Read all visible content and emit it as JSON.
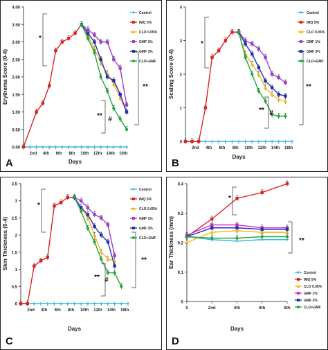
{
  "chart_data": [
    {
      "panel_label": "A",
      "type": "line",
      "ylabel": "Erythema Score (0-4)",
      "xlabel": "Days",
      "ylim": [
        0,
        4.0
      ],
      "yticks": [
        "0.00",
        "0.50",
        "1.00",
        "1.50",
        "2.00",
        "2.50",
        "3.00",
        "3.50",
        "4.00"
      ],
      "x_tick_labels": [
        "2nd",
        "4th",
        "6th",
        "8th",
        "10th",
        "12th",
        "14th",
        "16th"
      ],
      "x_tick_positions": [
        1.5,
        3.5,
        5.5,
        7.5,
        9.5,
        11.5,
        13.5,
        15.5
      ],
      "x": [
        0,
        1,
        2,
        3,
        4,
        5,
        6,
        7,
        8,
        9,
        10,
        11,
        12,
        13,
        14,
        15,
        16
      ],
      "series": [
        {
          "name": "Control",
          "color": "#3ab7ea",
          "marker": "plus",
          "values": [
            0,
            0,
            0,
            0,
            0,
            0,
            0,
            0,
            0,
            0,
            0,
            0,
            0,
            0,
            0,
            0,
            0
          ]
        },
        {
          "name": "IMQ 5%",
          "color": "#e0201e",
          "marker": "square",
          "values": [
            0,
            null,
            1.0,
            1.25,
            1.75,
            2.75,
            3.0,
            3.1,
            3.25,
            3.5,
            null,
            null,
            null,
            null,
            null,
            null,
            null
          ]
        },
        {
          "name": "CLO 0.05%",
          "color": "#f5b81c",
          "marker": "triangle",
          "values": [
            null,
            null,
            null,
            null,
            null,
            null,
            null,
            null,
            null,
            3.5,
            3.2,
            2.8,
            2.4,
            2.1,
            1.8,
            1.4,
            1.0
          ]
        },
        {
          "name": "GMF 1%",
          "color": "#a13bd6",
          "marker": "square",
          "values": [
            null,
            null,
            null,
            null,
            null,
            null,
            null,
            null,
            null,
            3.5,
            3.35,
            3.2,
            3.0,
            3.0,
            2.5,
            2.25,
            1.2
          ]
        },
        {
          "name": "GMF 3%",
          "color": "#1f2fb8",
          "marker": "square",
          "values": [
            null,
            null,
            null,
            null,
            null,
            null,
            null,
            null,
            null,
            3.5,
            3.25,
            3.0,
            2.5,
            2.0,
            1.9,
            1.5,
            1.0
          ]
        },
        {
          "name": "CLO+GMF",
          "color": "#1faa3a",
          "marker": "circle",
          "values": [
            null,
            null,
            null,
            null,
            null,
            null,
            null,
            null,
            null,
            3.5,
            3.1,
            2.7,
            2.0,
            1.6,
            1.1,
            0.8,
            0.5
          ]
        }
      ],
      "annotations": [
        "*",
        "**",
        "**",
        "#"
      ],
      "legend_position": "top-right"
    },
    {
      "panel_label": "B",
      "type": "line",
      "ylabel": "Scaling Score (0-4)",
      "xlabel": "Days",
      "ylim": [
        0,
        4
      ],
      "yticks": [
        "0",
        "1",
        "2",
        "3",
        "4"
      ],
      "x_tick_labels": [
        "2nd",
        "4th",
        "6th",
        "8th",
        "10th",
        "12th",
        "14th",
        "16th"
      ],
      "x_tick_positions": [
        1.5,
        3.5,
        5.5,
        7.5,
        9.5,
        11.5,
        13.5,
        15.5
      ],
      "x": [
        0,
        1,
        2,
        3,
        4,
        5,
        6,
        7,
        8,
        9,
        10,
        11,
        12,
        13,
        14,
        15,
        16
      ],
      "series": [
        {
          "name": "Control",
          "color": "#3ab7ea",
          "marker": "plus",
          "values": [
            0,
            0,
            0,
            0,
            0,
            0,
            0,
            0,
            0,
            0,
            0,
            0,
            0,
            0,
            0,
            0,
            0
          ]
        },
        {
          "name": "IMQ 5%",
          "color": "#e0201e",
          "marker": "square",
          "values": [
            0,
            0,
            0,
            1.0,
            2.5,
            2.7,
            3.0,
            3.25,
            3.25,
            null,
            null,
            null,
            null,
            null,
            null,
            null,
            null
          ]
        },
        {
          "name": "CLO 0.05%",
          "color": "#f5b81c",
          "marker": "triangle",
          "values": [
            null,
            null,
            null,
            null,
            null,
            null,
            null,
            null,
            3.25,
            2.6,
            2.3,
            2.0,
            1.6,
            1.4,
            1.25,
            1.2,
            null
          ]
        },
        {
          "name": "GMF 1%",
          "color": "#a13bd6",
          "marker": "square",
          "values": [
            null,
            null,
            null,
            null,
            null,
            null,
            null,
            null,
            3.25,
            3.0,
            2.9,
            2.75,
            2.5,
            2.0,
            1.9,
            1.75,
            null
          ]
        },
        {
          "name": "GMF 3%",
          "color": "#1f2fb8",
          "marker": "square",
          "values": [
            null,
            null,
            null,
            null,
            null,
            null,
            null,
            null,
            3.25,
            2.9,
            2.6,
            2.2,
            1.8,
            1.6,
            1.4,
            1.35,
            null
          ]
        },
        {
          "name": "CLO+GMF",
          "color": "#1faa3a",
          "marker": "circle",
          "values": [
            null,
            null,
            null,
            null,
            null,
            null,
            null,
            null,
            3.25,
            2.5,
            2.0,
            1.5,
            1.2,
            0.8,
            0.75,
            0.75,
            null
          ]
        }
      ],
      "annotations": [
        "*",
        "**",
        "**",
        "#"
      ],
      "legend_position": "top-right"
    },
    {
      "panel_label": "C",
      "type": "line",
      "ylabel": "Skin Thickness (0-4)",
      "xlabel": "Days",
      "ylim": [
        0,
        3.5
      ],
      "yticks": [
        "0",
        "0.5",
        "1",
        "1.5",
        "2",
        "2.5",
        "3",
        "3.5"
      ],
      "x_tick_labels": [
        "2nd",
        "4th",
        "6th",
        "8th",
        "10th",
        "12th",
        "14th",
        "16th"
      ],
      "x_tick_positions": [
        1.5,
        3.5,
        5.5,
        7.5,
        9.5,
        11.5,
        13.5,
        15.5
      ],
      "x": [
        0,
        1,
        2,
        3,
        4,
        5,
        6,
        7,
        8,
        9,
        10,
        11,
        12,
        13,
        14,
        15,
        16
      ],
      "series": [
        {
          "name": "Control",
          "color": "#3ab7ea",
          "marker": "plus",
          "values": [
            0,
            0,
            0,
            0,
            0,
            0,
            0,
            0,
            0,
            0,
            0,
            0,
            0,
            0,
            0,
            0,
            0
          ]
        },
        {
          "name": "IMQ 5%",
          "color": "#e0201e",
          "marker": "square",
          "values": [
            0,
            0,
            1.1,
            1.25,
            1.35,
            2.85,
            2.95,
            3.1,
            3.1,
            null,
            null,
            null,
            null,
            null,
            null,
            null,
            null
          ]
        },
        {
          "name": "CLO 0.05%",
          "color": "#f5b81c",
          "marker": "triangle",
          "values": [
            null,
            null,
            null,
            null,
            null,
            null,
            null,
            null,
            3.1,
            2.8,
            2.5,
            2.0,
            1.5,
            1.3,
            1.25,
            null,
            null
          ]
        },
        {
          "name": "GMF 1%",
          "color": "#a13bd6",
          "marker": "square",
          "values": [
            null,
            null,
            null,
            null,
            null,
            null,
            null,
            null,
            3.1,
            3.0,
            2.8,
            2.6,
            2.5,
            2.3,
            1.4,
            null,
            null
          ]
        },
        {
          "name": "GMF 3%",
          "color": "#1f2fb8",
          "marker": "square",
          "values": [
            null,
            null,
            null,
            null,
            null,
            null,
            null,
            null,
            3.1,
            2.8,
            2.6,
            2.25,
            2.0,
            1.8,
            1.1,
            null,
            null
          ]
        },
        {
          "name": "CLO+GMF",
          "color": "#1faa3a",
          "marker": "circle",
          "values": [
            null,
            null,
            null,
            null,
            null,
            null,
            null,
            null,
            3.1,
            2.7,
            2.2,
            1.8,
            1.3,
            0.9,
            0.9,
            0.5,
            null
          ]
        }
      ],
      "annotations": [
        "*",
        "**",
        "**",
        "#"
      ],
      "legend_position": "top-right"
    },
    {
      "panel_label": "D",
      "type": "line",
      "ylabel": "Ear Thickness (mm)",
      "xlabel": "Days",
      "ylim": [
        0.0,
        0.4
      ],
      "yticks": [
        "0",
        "0.1",
        "0.2",
        "0.3",
        "0.4"
      ],
      "x_tick_labels": [
        "0",
        "2nd",
        "4th",
        "6th",
        "8th"
      ],
      "x_tick_positions": [
        0,
        2,
        4,
        6,
        8
      ],
      "x": [
        0,
        2,
        4,
        6,
        8
      ],
      "series": [
        {
          "name": "Control",
          "color": "#3ab7ea",
          "marker": "plus",
          "values": [
            0.22,
            0.21,
            0.205,
            0.21,
            0.21
          ]
        },
        {
          "name": "IMQ 5%",
          "color": "#e0201e",
          "marker": "square",
          "values": [
            0.22,
            0.28,
            0.35,
            0.37,
            0.4
          ]
        },
        {
          "name": "CLO 0.05%",
          "color": "#f5b81c",
          "marker": "triangle",
          "values": [
            0.2,
            0.235,
            0.24,
            0.235,
            0.235
          ]
        },
        {
          "name": "GMF 1%",
          "color": "#d92fd0",
          "marker": "square",
          "values": [
            0.225,
            0.26,
            0.26,
            0.25,
            0.25
          ]
        },
        {
          "name": "GMF 3%",
          "color": "#1f2fb8",
          "marker": "square",
          "values": [
            0.22,
            0.25,
            0.25,
            0.245,
            0.245
          ]
        },
        {
          "name": "CLO+GMF",
          "color": "#1faa3a",
          "marker": "circle",
          "values": [
            0.22,
            0.215,
            0.215,
            0.22,
            0.22
          ]
        }
      ],
      "annotations": [
        "*",
        "**"
      ],
      "legend_position": "bottom-right"
    }
  ]
}
